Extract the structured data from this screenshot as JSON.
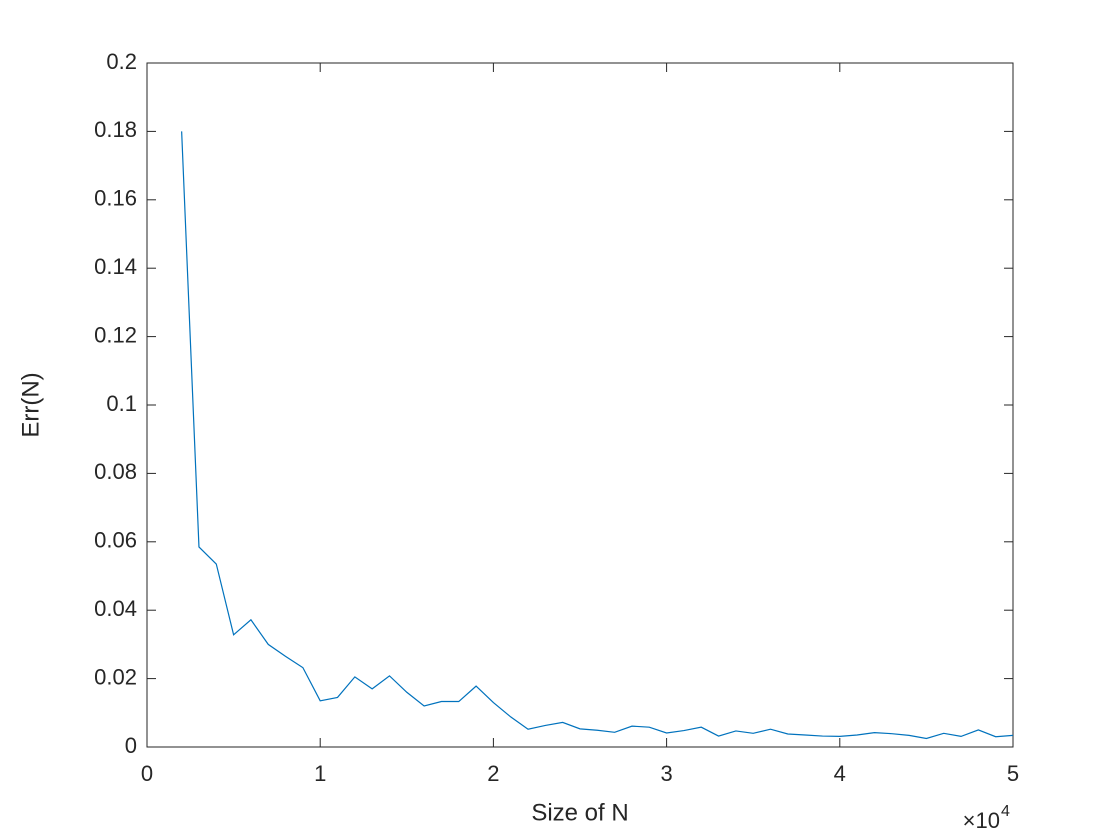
{
  "chart_data": {
    "type": "line",
    "xlabel": "Size of N",
    "ylabel": "Err(N)",
    "x_exponent_base": "×10",
    "x_exponent": "4",
    "x": [
      0.2,
      0.3,
      0.4,
      0.5,
      0.6,
      0.7,
      0.8,
      0.9,
      1.0,
      1.1,
      1.2,
      1.3,
      1.4,
      1.5,
      1.6,
      1.7,
      1.8,
      1.9,
      2.0,
      2.1,
      2.2,
      2.3,
      2.4,
      2.5,
      2.6,
      2.7,
      2.8,
      2.9,
      3.0,
      3.1,
      3.2,
      3.3,
      3.4,
      3.5,
      3.6,
      3.7,
      3.8,
      3.9,
      4.0,
      4.1,
      4.2,
      4.3,
      4.4,
      4.5,
      4.6,
      4.7,
      4.8,
      4.9,
      5.0
    ],
    "series": [
      {
        "color": "#0072bd",
        "values": [
          0.18,
          0.0585,
          0.0535,
          0.0328,
          0.0372,
          0.03,
          0.0265,
          0.0232,
          0.0135,
          0.0145,
          0.0205,
          0.017,
          0.0208,
          0.016,
          0.012,
          0.0133,
          0.0133,
          0.0178,
          0.013,
          0.0088,
          0.0052,
          0.0063,
          0.0072,
          0.0053,
          0.0049,
          0.0043,
          0.0061,
          0.0058,
          0.0041,
          0.0048,
          0.0058,
          0.0032,
          0.0047,
          0.004,
          0.0052,
          0.0038,
          0.0035,
          0.0032,
          0.0031,
          0.0035,
          0.0042,
          0.0039,
          0.0034,
          0.0025,
          0.004,
          0.0031,
          0.005,
          0.003,
          0.0034
        ]
      }
    ],
    "xlim": [
      0,
      5
    ],
    "xticks": [
      0,
      1,
      2,
      3,
      4,
      5
    ],
    "ylim": [
      0,
      0.2
    ],
    "yticks": [
      0,
      0.02,
      0.04,
      0.06,
      0.08,
      0.1,
      0.12,
      0.14,
      0.16,
      0.18,
      0.2
    ],
    "grid": false
  }
}
